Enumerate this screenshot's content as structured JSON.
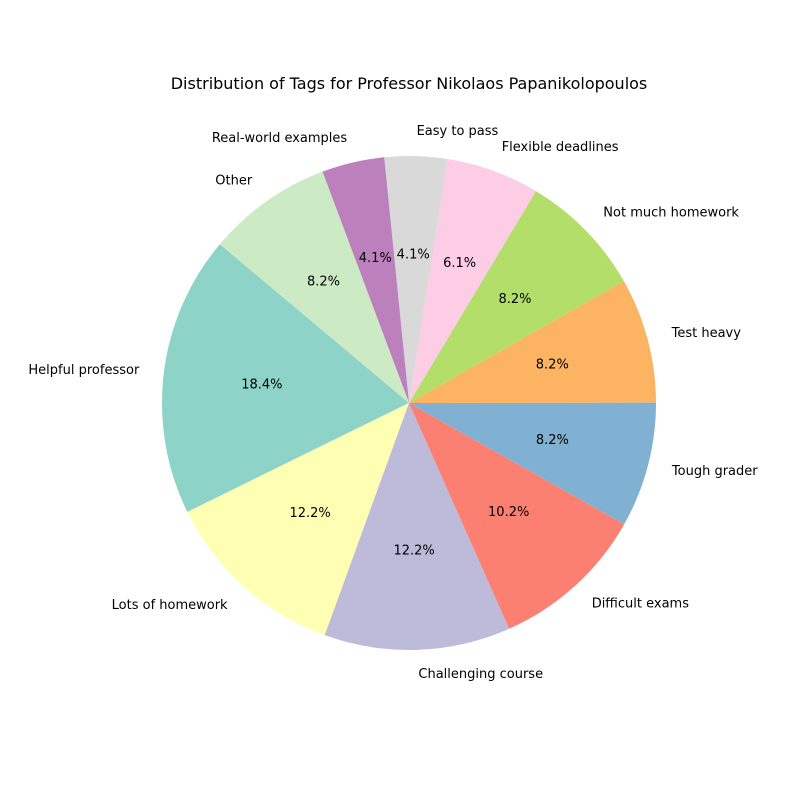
{
  "chart_data": {
    "type": "pie",
    "title": "Distribution of Tags for Professor Nikolaos Papanikolopoulos",
    "categories": [
      "Helpful professor",
      "Lots of homework",
      "Challenging course",
      "Difficult exams",
      "Tough grader",
      "Test heavy",
      "Not much homework",
      "Flexible deadlines",
      "Easy to pass",
      "Real-world examples",
      "Other"
    ],
    "values": [
      18.4,
      12.2,
      12.2,
      10.2,
      8.2,
      8.2,
      8.2,
      6.1,
      4.1,
      4.1,
      8.2
    ],
    "value_labels": [
      "18.4%",
      "12.2%",
      "12.2%",
      "10.2%",
      "8.2%",
      "8.2%",
      "8.2%",
      "6.1%",
      "4.1%",
      "4.1%",
      "8.2%"
    ],
    "colors": [
      "#8dd3c7",
      "#ffffb3",
      "#bebada",
      "#fb8072",
      "#80b1d3",
      "#fdb462",
      "#b3de69",
      "#fccde5",
      "#d9d9d9",
      "#bc80bd",
      "#ccebc5"
    ],
    "start_angle_deg": 140,
    "direction": "counterclockwise"
  }
}
